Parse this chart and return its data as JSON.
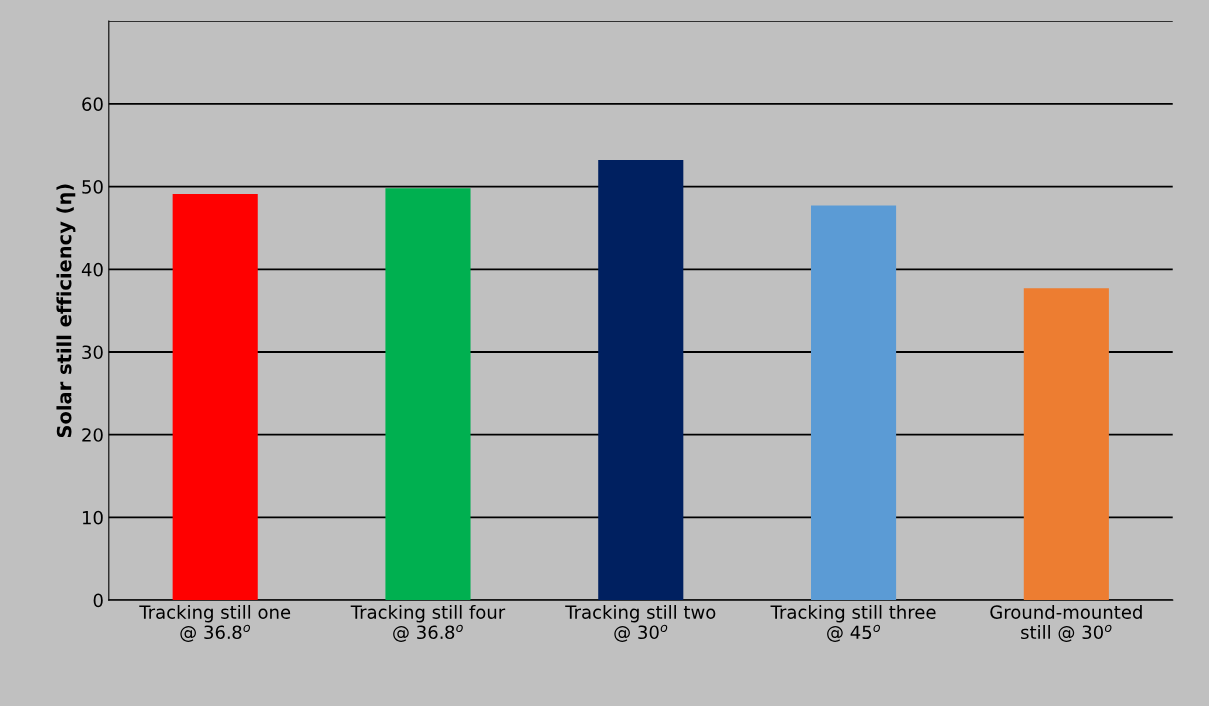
{
  "chart_data": {
    "type": "bar",
    "ylabel": "Solar still efficiency (η)",
    "categories": [
      "Tracking still one\n@ 36.8$^{o}$",
      "Tracking still four\n@ 36.8$^{o}$",
      "Tracking still two\n@ 30$^{o}$",
      "Tracking still three\n@ 45$^{o}$",
      "Ground-mounted\nstill @ 30$^{o}$"
    ],
    "values": [
      49.1,
      49.8,
      53.2,
      47.7,
      37.7
    ],
    "colors": [
      "#ff0000",
      "#00b050",
      "#002060",
      "#5b9bd5",
      "#ed7d31"
    ],
    "ylim": [
      0,
      70
    ],
    "yticks": [
      0,
      10,
      20,
      30,
      40,
      50,
      60,
      {
        "value": 70,
        "label": null
      }
    ],
    "grid": "y"
  }
}
